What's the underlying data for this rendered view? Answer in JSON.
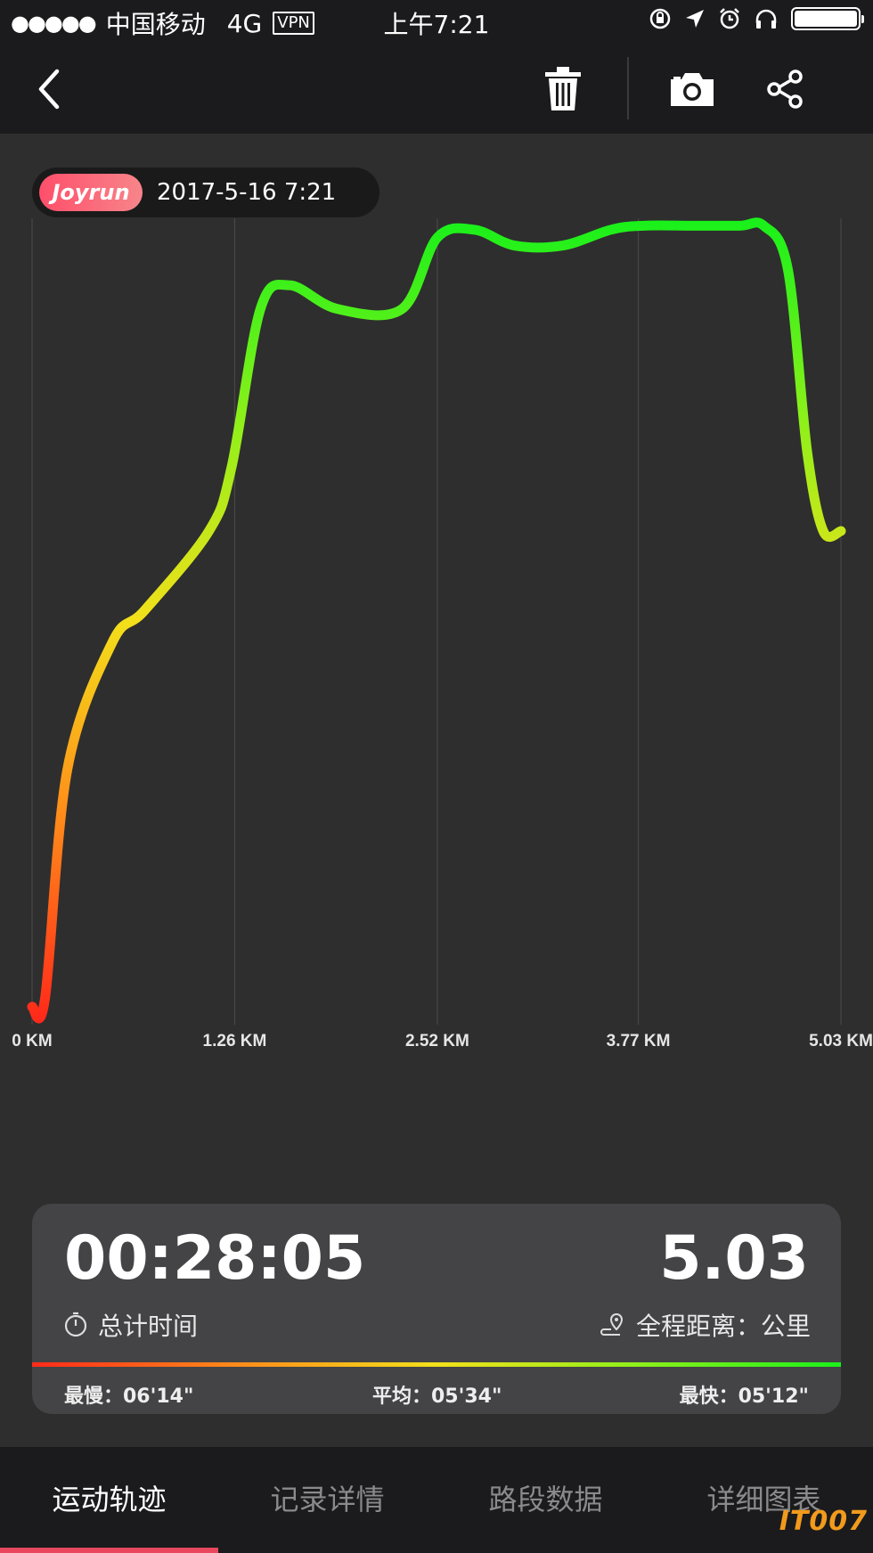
{
  "status_bar": {
    "signal_dots": "●●●●●",
    "carrier": "中国移动",
    "network": "4G",
    "vpn": "VPN",
    "time": "上午7:21",
    "icons": [
      "lock-rotation-icon",
      "location-arrow-icon",
      "alarm-icon",
      "headphones-icon",
      "battery-icon"
    ]
  },
  "header": {
    "back_icon": "chevron-left-icon",
    "delete_icon": "trash-icon",
    "camera_icon": "camera-icon",
    "share_icon": "share-icon"
  },
  "badge": {
    "brand": "Joyrun",
    "datetime": "2017-5-16 7:21"
  },
  "chart_data": {
    "type": "line",
    "x_tick_labels": [
      "0 KM",
      "1.26 KM",
      "2.52 KM",
      "3.77 KM",
      "5.03 KM"
    ],
    "x_ticks": [
      0,
      1.26,
      2.52,
      3.77,
      5.03
    ],
    "xlim": [
      0,
      5.03
    ],
    "ylim": [
      0,
      1
    ],
    "grid": "vertical",
    "color_scale": [
      "#ff2a1a",
      "#ff8a1a",
      "#f3e01a",
      "#8ef01a",
      "#1af01a"
    ],
    "x": [
      0,
      0.08,
      0.22,
      0.5,
      0.7,
      1.1,
      1.24,
      1.42,
      1.6,
      1.9,
      2.3,
      2.52,
      2.75,
      3.0,
      3.3,
      3.6,
      3.8,
      4.1,
      4.4,
      4.55,
      4.7,
      4.82,
      4.92,
      5.03
    ],
    "y": [
      0.0,
      0.01,
      0.3,
      0.46,
      0.5,
      0.6,
      0.68,
      0.88,
      0.91,
      0.88,
      0.88,
      0.97,
      0.98,
      0.96,
      0.96,
      0.98,
      0.985,
      0.985,
      0.985,
      0.985,
      0.93,
      0.7,
      0.6,
      0.6
    ]
  },
  "summary": {
    "total_time": "00:28:05",
    "total_time_label": "总计时间",
    "distance": "5.03",
    "distance_label": "全程距离：公里",
    "slowest": "最慢：06'14\"",
    "average": "平均：05'34\"",
    "fastest": "最快：05'12\""
  },
  "tabs": [
    {
      "label": "运动轨迹",
      "active": true
    },
    {
      "label": "记录详情",
      "active": false
    },
    {
      "label": "路段数据",
      "active": false
    },
    {
      "label": "详细图表",
      "active": false
    }
  ],
  "watermark": "IT007"
}
